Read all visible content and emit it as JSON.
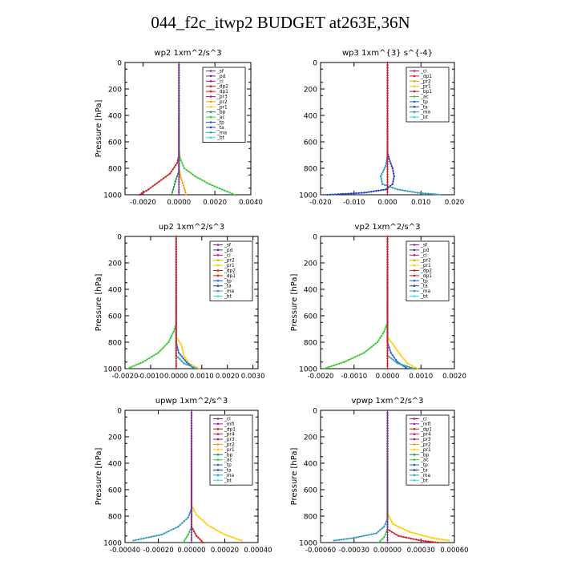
{
  "title": "044_f2c_itwp2  BUDGET at263E,36N",
  "colors": {
    "sf": "#7b2f9e",
    "pd": "#5a2d91",
    "cl": "#b0187a",
    "dp2": "#d7191c",
    "dp1": "#d7191c",
    "pr3": "#c6185c",
    "pr2": "#f4a300",
    "pr1": "#ffcc00",
    "bp": "#2e8b57",
    "ac": "#33cc33",
    "tp": "#1a66cc",
    "ta": "#1f3fbf",
    "ma": "#3399bb",
    "bt": "#33dddd",
    "mfl": "#8e2a9c",
    "dp4": "#cc1f1f",
    "pr4": "#d2145a",
    "bp1": "#b22222"
  },
  "chart_data": [
    {
      "type": "line",
      "title": "wp2  1xm^2/s^3",
      "ylabel": "Pressure  [hPa]",
      "xlim": [
        -0.003,
        0.004
      ],
      "ylim": [
        1000,
        0
      ],
      "xticks": [
        "-0.0020",
        "0.0000",
        "0.0020",
        "0.0040"
      ],
      "xtick_values": [
        -0.002,
        0,
        0.002,
        0.004
      ],
      "yticks": [
        "0",
        "200",
        "400",
        "600",
        "800",
        "1000"
      ],
      "legend": [
        "_sf",
        "_pd",
        "_cl",
        "_dp2",
        "_dp1",
        "_pr3",
        "_pr2",
        "_pr1",
        "_bp",
        "_ac",
        "_tp",
        "_ta",
        "_ma",
        "_bt"
      ],
      "series": [
        {
          "name": "_ac",
          "key": "ac",
          "x": [
            0,
            0,
            5e-05,
            0.0003,
            0.0009,
            0.0017,
            0.0024,
            0.0031
          ],
          "y": [
            0,
            650,
            720,
            800,
            860,
            920,
            960,
            1000
          ]
        },
        {
          "name": "_dp2",
          "key": "dp2",
          "x": [
            0,
            0,
            -0.0001,
            -0.0005,
            -0.0011,
            -0.0017,
            -0.0022
          ],
          "y": [
            0,
            700,
            760,
            840,
            900,
            960,
            1000
          ]
        },
        {
          "name": "_pr2",
          "key": "pr2",
          "x": [
            0,
            0,
            0.0001,
            0.0003,
            0.0004
          ],
          "y": [
            0,
            800,
            870,
            950,
            1000
          ]
        },
        {
          "name": "_bp",
          "key": "bp",
          "x": [
            0,
            0,
            -0.0002,
            -0.0004
          ],
          "y": [
            0,
            820,
            900,
            1000
          ]
        },
        {
          "name": "_sf",
          "key": "sf",
          "x": [
            0,
            0
          ],
          "y": [
            0,
            1000
          ]
        }
      ]
    },
    {
      "type": "line",
      "title": "wp3   1xm^{3} s^{-4}",
      "ylabel": "",
      "xlim": [
        -0.02,
        0.02
      ],
      "ylim": [
        1000,
        0
      ],
      "xticks": [
        "-0.020",
        "-0.010",
        "0.000",
        "0.010",
        "0.020"
      ],
      "xtick_values": [
        -0.02,
        -0.01,
        0,
        0.01,
        0.02
      ],
      "yticks": [
        "0",
        "200",
        "400",
        "600",
        "800",
        "1000"
      ],
      "legend": [
        "_cl",
        "_dp1",
        "_pr2",
        "_pr1",
        "_bp1",
        "_ac",
        "_tp",
        "_ta",
        "_ma",
        "_bt"
      ],
      "series": [
        {
          "name": "_ta",
          "key": "ta",
          "x": [
            0,
            0,
            0.0005,
            0.0015,
            0.002,
            0.0015,
            -0.0005,
            -0.007,
            -0.018
          ],
          "y": [
            0,
            680,
            730,
            800,
            860,
            920,
            960,
            985,
            1000
          ]
        },
        {
          "name": "_ma",
          "key": "ma",
          "x": [
            0,
            0,
            -0.0005,
            -0.002,
            -0.0015,
            0.003,
            0.009,
            0.016
          ],
          "y": [
            0,
            700,
            780,
            860,
            920,
            960,
            985,
            1000
          ]
        },
        {
          "name": "_dp1",
          "key": "dp1",
          "x": [
            0,
            0
          ],
          "y": [
            0,
            1000
          ]
        }
      ]
    },
    {
      "type": "line",
      "title": "up2   1xm^2/s^3",
      "ylabel": "Pressure  [hPa]",
      "xlim": [
        -0.002,
        0.0032
      ],
      "ylim": [
        1000,
        0
      ],
      "xticks": [
        "-0.0020",
        "-0.0010",
        "0.0000",
        "0.0010",
        "0.0020",
        "0.0030"
      ],
      "xtick_values": [
        -0.002,
        -0.001,
        0,
        0.001,
        0.002,
        0.003
      ],
      "yticks": [
        "0",
        "200",
        "400",
        "600",
        "800",
        "1000"
      ],
      "legend": [
        "_sf",
        "_pd",
        "_cl",
        "_pr2",
        "_pr1",
        "_dp2",
        "_dp1",
        "_tp",
        "_ta",
        "_ma",
        "_bt"
      ],
      "series": [
        {
          "name": "_dp2",
          "key": "ac",
          "x": [
            0,
            0,
            -0.0001,
            -0.0003,
            -0.0007,
            -0.0013,
            -0.0019
          ],
          "y": [
            0,
            660,
            720,
            800,
            880,
            950,
            1000
          ]
        },
        {
          "name": "_pr1",
          "key": "pr1",
          "x": [
            0,
            0,
            0.0002,
            0.0003,
            0.0005,
            0.0009
          ],
          "y": [
            0,
            760,
            820,
            900,
            960,
            1000
          ]
        },
        {
          "name": "_tp",
          "key": "tp",
          "x": [
            0,
            0,
            0.0001,
            0.0004,
            0.0007
          ],
          "y": [
            0,
            800,
            880,
            950,
            1000
          ]
        },
        {
          "name": "_ma",
          "key": "ma",
          "x": [
            0,
            0,
            0.0003,
            0.0008
          ],
          "y": [
            0,
            900,
            960,
            1000
          ]
        },
        {
          "name": "_sf",
          "key": "dp2",
          "x": [
            0,
            0
          ],
          "y": [
            0,
            1000
          ]
        }
      ]
    },
    {
      "type": "line",
      "title": "vp2   1xm^2/s^3",
      "ylabel": "Pressure  [hPa]",
      "xlim": [
        -0.002,
        0.002
      ],
      "ylim": [
        1000,
        0
      ],
      "xticks": [
        "-0.0020",
        "-0.0010",
        "0.0000",
        "0.0010",
        "0.0020"
      ],
      "xtick_values": [
        -0.002,
        -0.001,
        0,
        0.001,
        0.002
      ],
      "yticks": [
        "0",
        "200",
        "400",
        "600",
        "800",
        "1000"
      ],
      "legend": [
        "_sf",
        "_pd",
        "_cl",
        "_pr2",
        "_pr1",
        "_dp2",
        "_dp1",
        "_tp",
        "_ta",
        "_ma",
        "_bt"
      ],
      "series": [
        {
          "name": "_dp2",
          "key": "ac",
          "x": [
            0,
            0,
            -0.0001,
            -0.0003,
            -0.0007,
            -0.0013,
            -0.0019
          ],
          "y": [
            0,
            650,
            720,
            800,
            880,
            950,
            1000
          ]
        },
        {
          "name": "_pr1",
          "key": "pr1",
          "x": [
            0,
            0,
            0.0002,
            0.0004,
            0.0006,
            0.0009
          ],
          "y": [
            0,
            760,
            830,
            900,
            960,
            1000
          ]
        },
        {
          "name": "_tp",
          "key": "tp",
          "x": [
            0,
            0,
            0.0001,
            0.0003,
            0.0006
          ],
          "y": [
            0,
            800,
            880,
            950,
            1000
          ]
        },
        {
          "name": "_ma",
          "key": "ma",
          "x": [
            0,
            0,
            0.0003,
            0.0008
          ],
          "y": [
            0,
            900,
            960,
            1000
          ]
        },
        {
          "name": "_sf",
          "key": "dp2",
          "x": [
            0,
            0
          ],
          "y": [
            0,
            1000
          ]
        }
      ]
    },
    {
      "type": "line",
      "title": "upwp   1xm^2/s^3",
      "ylabel": "Pressure  [hPa]",
      "xlim": [
        -0.0004,
        0.0004
      ],
      "ylim": [
        1000,
        0
      ],
      "xticks": [
        "-0.00040",
        "-0.00020",
        "0.00000",
        "0.00020",
        "0.00040"
      ],
      "xtick_values": [
        -0.0004,
        -0.0002,
        0,
        0.0002,
        0.0004
      ],
      "yticks": [
        "0",
        "200",
        "400",
        "600",
        "800",
        "1000"
      ],
      "legend": [
        "_cl",
        "_mfl",
        "_dp1",
        "_pr4",
        "_pr3",
        "_pr2",
        "_pr1",
        "_bp",
        "_ac",
        "_tp",
        "_ta",
        "_ma",
        "_bt"
      ],
      "series": [
        {
          "name": "_pr1",
          "key": "pr1",
          "x": [
            0,
            0,
            3e-05,
            0.0001,
            0.0002,
            0.0003
          ],
          "y": [
            0,
            720,
            790,
            870,
            940,
            985
          ]
        },
        {
          "name": "_ma",
          "key": "ma",
          "x": [
            0,
            0,
            -2e-05,
            -8e-05,
            -0.00018,
            -0.00035
          ],
          "y": [
            0,
            740,
            810,
            880,
            940,
            985
          ]
        },
        {
          "name": "_ac",
          "key": "ac",
          "x": [
            0,
            0,
            -2e-05,
            -5e-05
          ],
          "y": [
            0,
            880,
            940,
            1000
          ]
        },
        {
          "name": "_dp1",
          "key": "dp1",
          "x": [
            0,
            0,
            3e-05,
            7e-05
          ],
          "y": [
            0,
            880,
            950,
            1000
          ]
        },
        {
          "name": "_cl",
          "key": "sf",
          "x": [
            0,
            0
          ],
          "y": [
            0,
            1000
          ]
        }
      ]
    },
    {
      "type": "line",
      "title": "vpwp   1xm^2/s^3",
      "ylabel": "Pressure  [hPa]",
      "xlim": [
        -0.0006,
        0.0006
      ],
      "ylim": [
        1000,
        0
      ],
      "xticks": [
        "-0.00060",
        "-0.00030",
        "0.00000",
        "0.00030",
        "0.00060"
      ],
      "xtick_values": [
        -0.0006,
        -0.0003,
        0,
        0.0003,
        0.0006
      ],
      "yticks": [
        "0",
        "200",
        "400",
        "600",
        "800",
        "1000"
      ],
      "legend": [
        "_cl",
        "_mfl",
        "_dp1",
        "_pr4",
        "_pr3",
        "_pr2",
        "_pr1",
        "_bp",
        "_ac",
        "_tp",
        "_ta",
        "_ma",
        "_bt"
      ],
      "series": [
        {
          "name": "_pr1",
          "key": "pr1",
          "x": [
            0,
            0,
            5e-05,
            0.0002,
            0.0004,
            0.00055
          ],
          "y": [
            0,
            780,
            860,
            920,
            965,
            985
          ]
        },
        {
          "name": "_ma",
          "key": "ma",
          "x": [
            0,
            0,
            -3e-05,
            -0.0001,
            -0.0003,
            -0.00048
          ],
          "y": [
            0,
            820,
            880,
            930,
            965,
            985
          ]
        },
        {
          "name": "_dp1",
          "key": "dp1",
          "x": [
            0,
            0,
            0.0001,
            0.0003,
            0.00045
          ],
          "y": [
            0,
            900,
            950,
            985,
            1000
          ]
        },
        {
          "name": "_ac",
          "key": "ac",
          "x": [
            0,
            0,
            -3e-05,
            -8e-05
          ],
          "y": [
            0,
            900,
            960,
            1000
          ]
        },
        {
          "name": "_cl",
          "key": "sf",
          "x": [
            0,
            0
          ],
          "y": [
            0,
            1000
          ]
        }
      ]
    }
  ]
}
